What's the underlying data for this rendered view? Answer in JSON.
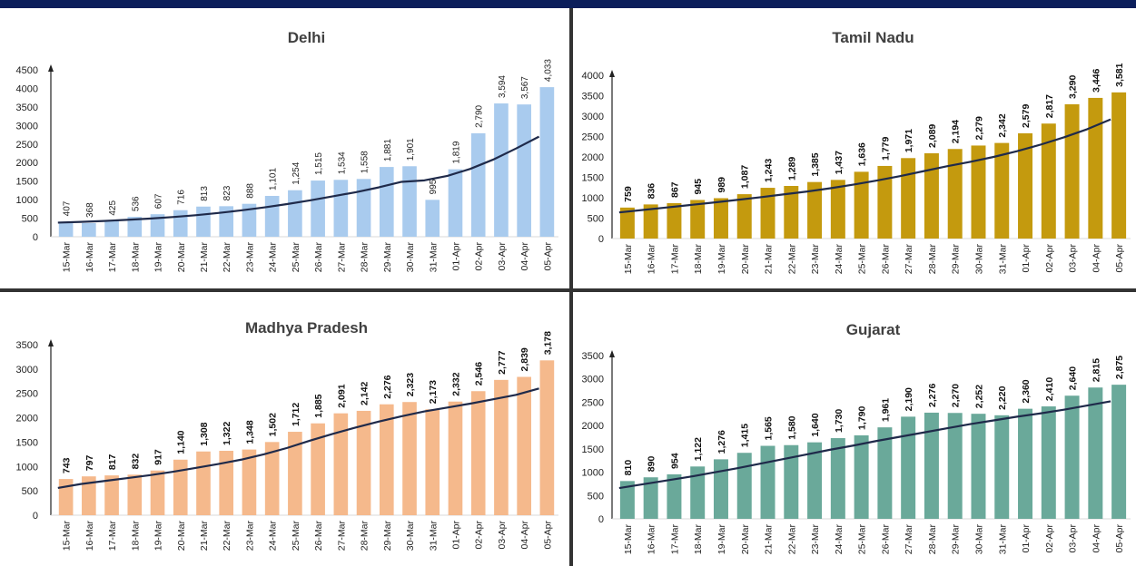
{
  "colors": {
    "header": "#0b1e5b",
    "trend": "#1f2a4a"
  },
  "chart_data": [
    {
      "id": "delhi",
      "type": "bar",
      "title": "Delhi",
      "color": "#a9cbee",
      "label_style": "normal",
      "ylim": [
        0,
        4500
      ],
      "yticks": [
        0,
        500,
        1000,
        1500,
        2000,
        2500,
        3000,
        3500,
        4000,
        4500
      ],
      "categories": [
        "15-Mar",
        "16-Mar",
        "17-Mar",
        "18-Mar",
        "19-Mar",
        "20-Mar",
        "21-Mar",
        "22-Mar",
        "23-Mar",
        "24-Mar",
        "25-Mar",
        "26-Mar",
        "27-Mar",
        "28-Mar",
        "29-Mar",
        "30-Mar",
        "31-Mar",
        "01-Apr",
        "02-Apr",
        "03-Apr",
        "04-Apr",
        "05-Apr"
      ],
      "values": [
        407,
        368,
        425,
        536,
        607,
        716,
        813,
        823,
        888,
        1101,
        1254,
        1515,
        1534,
        1558,
        1881,
        1901,
        995,
        1819,
        2790,
        3594,
        3567,
        4033
      ],
      "labels": [
        "407",
        "368",
        "425",
        "536",
        "607",
        "716",
        "813",
        "823",
        "888",
        "1,101",
        "1,254",
        "1,515",
        "1,534",
        "1,558",
        "1,881",
        "1,901",
        "995",
        "1,819",
        "2,790",
        "3,594",
        "3,567",
        "4,033"
      ],
      "trend": [
        380,
        400,
        425,
        455,
        490,
        530,
        580,
        640,
        710,
        790,
        880,
        980,
        1090,
        1200,
        1330,
        1480,
        1520,
        1640,
        1830,
        2080,
        2380,
        2700
      ]
    },
    {
      "id": "tamil-nadu",
      "type": "bar",
      "title": "Tamil Nadu",
      "color": "#c49a0e",
      "label_style": "bold",
      "ylim": [
        0,
        4000
      ],
      "yticks": [
        0,
        500,
        1000,
        1500,
        2000,
        2500,
        3000,
        3500,
        4000
      ],
      "categories": [
        "15-Mar",
        "16-Mar",
        "17-Mar",
        "18-Mar",
        "19-Mar",
        "20-Mar",
        "21-Mar",
        "22-Mar",
        "23-Mar",
        "24-Mar",
        "25-Mar",
        "26-Mar",
        "27-Mar",
        "28-Mar",
        "29-Mar",
        "30-Mar",
        "31-Mar",
        "01-Apr",
        "02-Apr",
        "03-Apr",
        "04-Apr",
        "05-Apr"
      ],
      "values": [
        759,
        836,
        867,
        945,
        989,
        1087,
        1243,
        1289,
        1385,
        1437,
        1636,
        1779,
        1971,
        2089,
        2194,
        2279,
        2342,
        2579,
        2817,
        3290,
        3446,
        3581
      ],
      "labels": [
        "759",
        "836",
        "867",
        "945",
        "989",
        "1,087",
        "1,243",
        "1,289",
        "1,385",
        "1,437",
        "1,636",
        "1,779",
        "1,971",
        "2,089",
        "2,194",
        "2,279",
        "2,342",
        "2,579",
        "2,817",
        "3,290",
        "3,446",
        "3,581"
      ],
      "trend": [
        640,
        700,
        760,
        820,
        880,
        945,
        1010,
        1080,
        1150,
        1230,
        1320,
        1420,
        1530,
        1650,
        1770,
        1880,
        2000,
        2140,
        2300,
        2480,
        2680,
        2920
      ]
    },
    {
      "id": "madhya-pradesh",
      "type": "bar",
      "title": "Madhya Pradesh",
      "color": "#f5b98c",
      "label_style": "bold",
      "ylim": [
        0,
        3500
      ],
      "yticks": [
        0,
        500,
        1000,
        1500,
        2000,
        2500,
        3000,
        3500
      ],
      "categories": [
        "15-Mar",
        "16-Mar",
        "17-Mar",
        "18-Mar",
        "19-Mar",
        "20-Mar",
        "21-Mar",
        "22-Mar",
        "23-Mar",
        "24-Mar",
        "25-Mar",
        "26-Mar",
        "27-Mar",
        "28-Mar",
        "29-Mar",
        "30-Mar",
        "31-Mar",
        "01-Apr",
        "02-Apr",
        "03-Apr",
        "04-Apr",
        "05-Apr"
      ],
      "values": [
        743,
        797,
        817,
        832,
        917,
        1140,
        1308,
        1322,
        1348,
        1502,
        1712,
        1885,
        2091,
        2142,
        2276,
        2323,
        2173,
        2332,
        2546,
        2777,
        2839,
        3178
      ],
      "labels": [
        "743",
        "797",
        "817",
        "832",
        "917",
        "1,140",
        "1,308",
        "1,322",
        "1,348",
        "1,502",
        "1,712",
        "1,885",
        "2,091",
        "2,142",
        "2,276",
        "2,323",
        "2,173",
        "2,332",
        "2,546",
        "2,777",
        "2,839",
        "3,178"
      ],
      "trend": [
        560,
        640,
        700,
        760,
        820,
        890,
        970,
        1050,
        1140,
        1250,
        1380,
        1530,
        1670,
        1800,
        1920,
        2030,
        2130,
        2210,
        2290,
        2380,
        2470,
        2600
      ]
    },
    {
      "id": "gujarat",
      "type": "bar",
      "title": "Gujarat",
      "color": "#6aa99a",
      "label_style": "bold",
      "ylim": [
        0,
        3500
      ],
      "yticks": [
        0,
        500,
        1000,
        1500,
        2000,
        2500,
        3000,
        3500
      ],
      "categories": [
        "15-Mar",
        "16-Mar",
        "17-Mar",
        "18-Mar",
        "19-Mar",
        "20-Mar",
        "21-Mar",
        "22-Mar",
        "23-Mar",
        "24-Mar",
        "25-Mar",
        "26-Mar",
        "27-Mar",
        "28-Mar",
        "29-Mar",
        "30-Mar",
        "31-Mar",
        "01-Apr",
        "02-Apr",
        "03-Apr",
        "04-Apr",
        "05-Apr"
      ],
      "values": [
        810,
        890,
        954,
        1122,
        1276,
        1415,
        1565,
        1580,
        1640,
        1730,
        1790,
        1961,
        2190,
        2276,
        2270,
        2252,
        2220,
        2360,
        2410,
        2640,
        2815,
        2875
      ],
      "labels": [
        "810",
        "890",
        "954",
        "1,122",
        "1,276",
        "1,415",
        "1,565",
        "1,580",
        "1,640",
        "1,730",
        "1,790",
        "1,961",
        "2,190",
        "2,276",
        "2,270",
        "2,252",
        "2,220",
        "2,360",
        "2,410",
        "2,640",
        "2,815",
        "2,875"
      ],
      "trend": [
        660,
        740,
        820,
        900,
        990,
        1080,
        1180,
        1280,
        1380,
        1480,
        1570,
        1670,
        1760,
        1850,
        1940,
        2030,
        2110,
        2190,
        2260,
        2340,
        2430,
        2520
      ]
    }
  ]
}
